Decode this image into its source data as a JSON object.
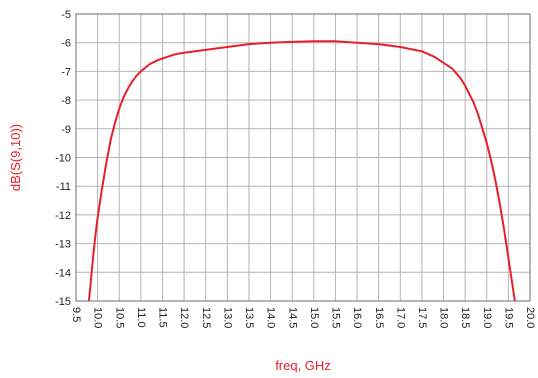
{
  "chart_data": {
    "type": "line",
    "xlabel": "freq, GHz",
    "ylabel": "dB(S(9,10))",
    "xlim": [
      9.5,
      20.0
    ],
    "ylim": [
      -15,
      -5
    ],
    "x_ticks": [
      "9.5",
      "10.0",
      "10.5",
      "11.0",
      "11.5",
      "12.0",
      "12.5",
      "13.0",
      "13.5",
      "14.0",
      "14.5",
      "15.0",
      "15.5",
      "16.0",
      "16.5",
      "17.0",
      "17.5",
      "18.0",
      "18.5",
      "19.0",
      "19.5",
      "20.0"
    ],
    "y_ticks": [
      "-5",
      "-6",
      "-7",
      "-8",
      "-9",
      "-10",
      "-11",
      "-12",
      "-13",
      "-14",
      "-15"
    ],
    "grid": true,
    "colors": {
      "series": "#e8202a",
      "ylabel": "#e8202a",
      "grid": "#b4b4b4",
      "frame": "#6e6e6e"
    },
    "series": [
      {
        "x": [
          9.8,
          9.85,
          9.9,
          9.95,
          10.0,
          10.1,
          10.2,
          10.3,
          10.4,
          10.5,
          10.6,
          10.7,
          10.8,
          10.9,
          11.0,
          11.2,
          11.4,
          11.6,
          11.8,
          12.0,
          12.5,
          13.0,
          13.5,
          14.0,
          14.5,
          15.0,
          15.5,
          16.0,
          16.5,
          17.0,
          17.5,
          17.8,
          18.0,
          18.2,
          18.4,
          18.5,
          18.6,
          18.7,
          18.8,
          18.9,
          19.0,
          19.1,
          19.2,
          19.3,
          19.4,
          19.5,
          19.55,
          19.6,
          19.65
        ],
        "y": [
          -15.0,
          -14.2,
          -13.4,
          -12.7,
          -12.1,
          -11.1,
          -10.2,
          -9.4,
          -8.8,
          -8.3,
          -7.9,
          -7.6,
          -7.35,
          -7.15,
          -7.0,
          -6.75,
          -6.6,
          -6.5,
          -6.4,
          -6.35,
          -6.25,
          -6.15,
          -6.05,
          -6.0,
          -5.97,
          -5.95,
          -5.95,
          -6.0,
          -6.05,
          -6.15,
          -6.3,
          -6.5,
          -6.7,
          -6.9,
          -7.25,
          -7.5,
          -7.8,
          -8.1,
          -8.5,
          -9.0,
          -9.5,
          -10.1,
          -10.8,
          -11.6,
          -12.5,
          -13.5,
          -14.0,
          -14.5,
          -15.0
        ]
      }
    ]
  }
}
